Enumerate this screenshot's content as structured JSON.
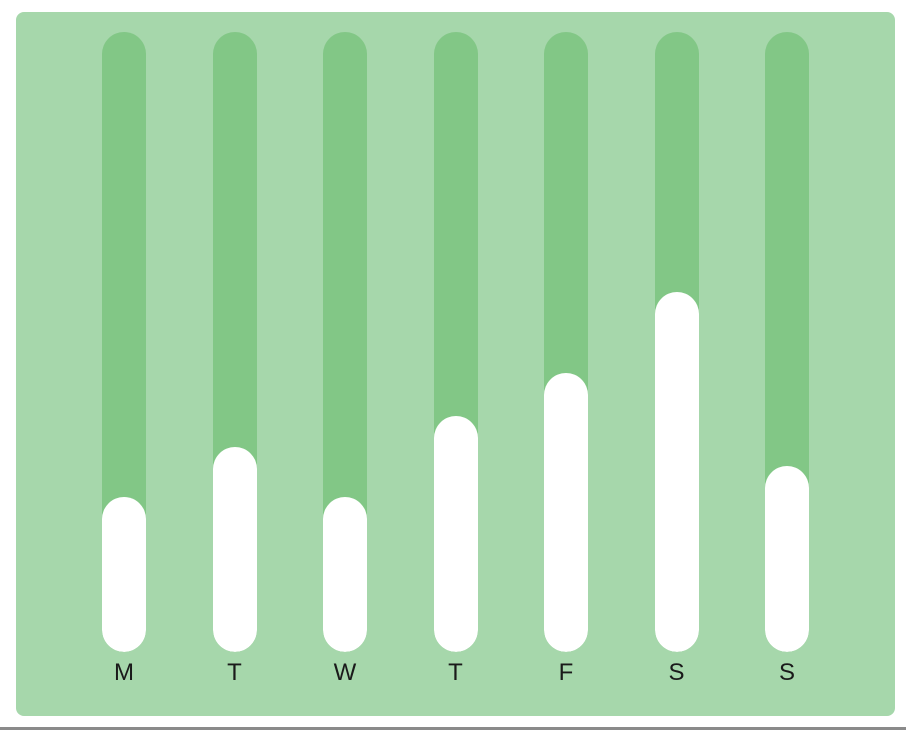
{
  "chart_data": {
    "type": "bar",
    "categories": [
      "M",
      "T",
      "W",
      "T",
      "F",
      "S",
      "S"
    ],
    "values": [
      25,
      33,
      25,
      38,
      45,
      58,
      30
    ],
    "ylim": [
      0,
      100
    ],
    "grid": false,
    "colors": {
      "background": "#a6d7ab",
      "track": "#82c786",
      "bar": "#ffffff",
      "label": "#1a1a1a"
    }
  }
}
